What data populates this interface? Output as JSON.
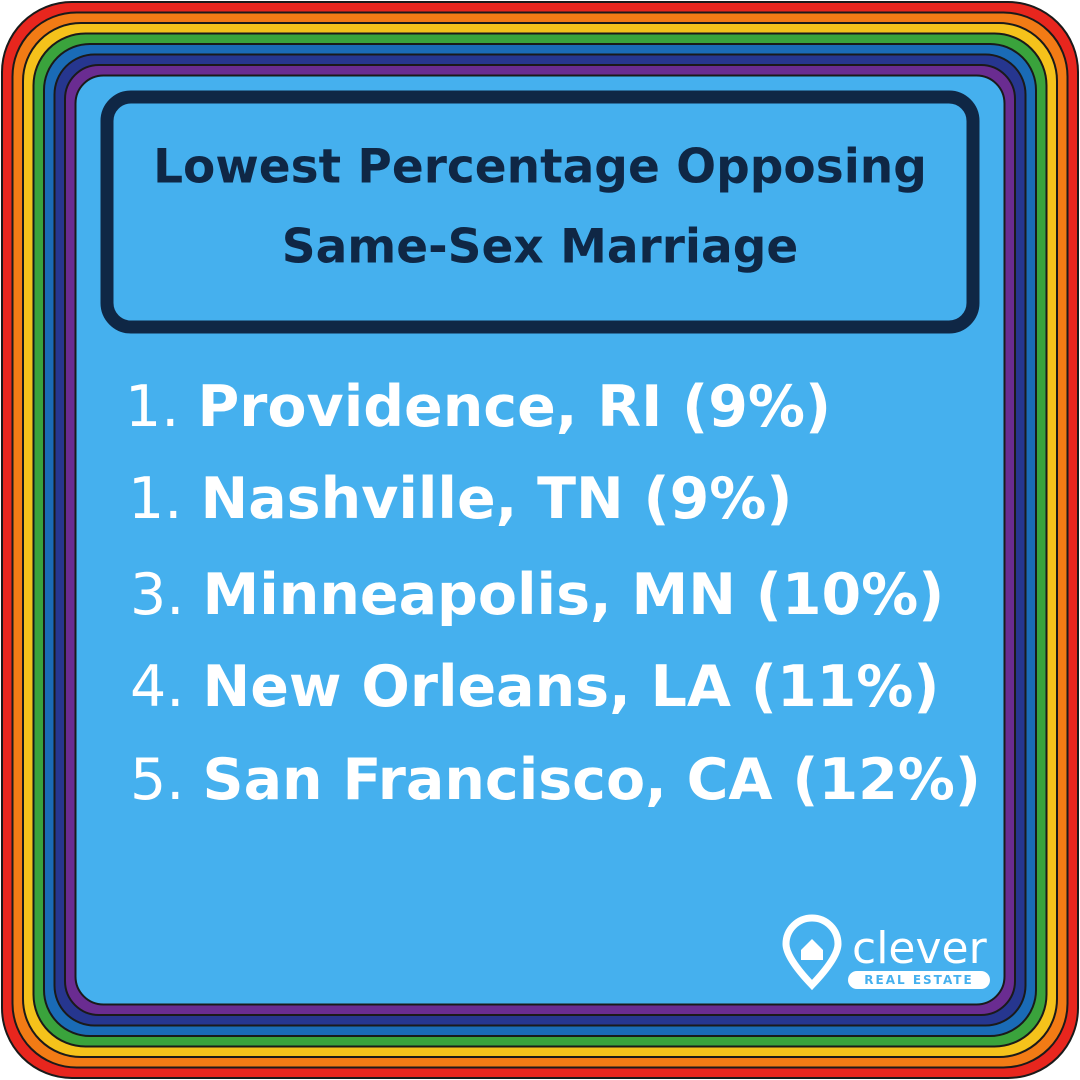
{
  "header": {
    "title_lines": [
      "Lowest Percentage Opposing",
      "Same-Sex Marriage"
    ]
  },
  "list": [
    {
      "rank": "1.",
      "label": "Providence, RI (9%)"
    },
    {
      "rank": "1.",
      "label": "Nashville, TN (9%)"
    },
    {
      "rank": "3.",
      "label": "Minneapolis, MN (10%)"
    },
    {
      "rank": "4.",
      "label": "New Orleans, LA (11%)"
    },
    {
      "rank": "5.",
      "label": "San Francisco, CA (12%)"
    }
  ],
  "logo": {
    "name": "clever",
    "tagline": "REAL ESTATE"
  }
}
